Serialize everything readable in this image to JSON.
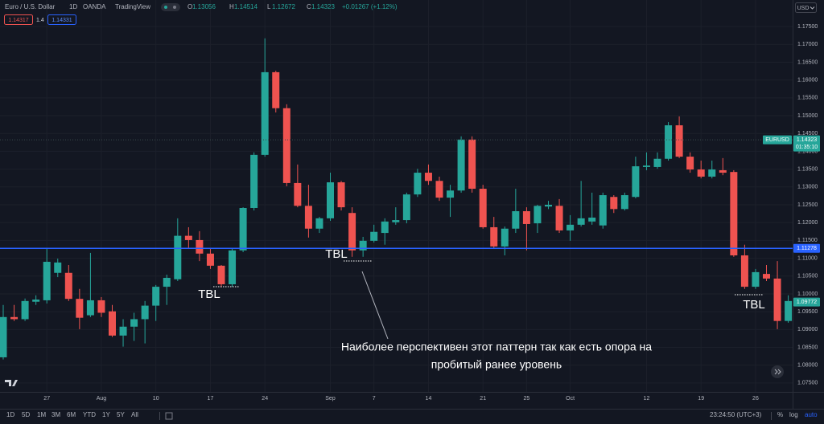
{
  "chart_data": {
    "type": "candlestick",
    "title": "Euro / U.S. Dollar",
    "interval": "1D",
    "exchange": "OANDA",
    "source": "TradingView",
    "legend": [
      {
        "key": "O",
        "value": 1.13056
      },
      {
        "key": "H",
        "value": 1.14514
      },
      {
        "key": "L",
        "value": 1.12672
      },
      {
        "key": "C",
        "value": 1.14323
      }
    ],
    "change": "+0.01267 (+1.12%)",
    "currency": "USD",
    "categories": [
      null,
      null,
      null,
      null,
      "27",
      null,
      null,
      null,
      null,
      "Aug",
      null,
      null,
      null,
      null,
      "10",
      null,
      null,
      null,
      null,
      "17",
      null,
      null,
      null,
      null,
      "24",
      null,
      null,
      null,
      null,
      null,
      "Sep",
      null,
      null,
      null,
      "7",
      null,
      null,
      null,
      null,
      "14",
      null,
      null,
      null,
      null,
      "21",
      null,
      null,
      null,
      "25",
      null,
      null,
      null,
      "Oct",
      null,
      null,
      null,
      null,
      null,
      null,
      "12",
      null,
      null,
      null,
      null,
      "19",
      null,
      null,
      null,
      null,
      "26",
      null,
      null,
      null
    ],
    "open": [
      1.0822,
      1.0935,
      1.0929,
      1.0978,
      1.0982,
      1.1059,
      1.1059,
      1.0986,
      1.094,
      1.0982,
      1.0951,
      1.0883,
      1.0908,
      1.0929,
      1.0967,
      1.102,
      1.1041,
      1.1163,
      1.1151,
      1.1113,
      1.1079,
      1.1027,
      1.1122,
      1.1241,
      1.139,
      1.1622,
      1.1521,
      1.1311,
      1.1247,
      1.1183,
      1.1212,
      1.1313,
      1.1227,
      1.1122,
      1.1149,
      1.1171,
      1.1201,
      1.1207,
      1.1279,
      1.134,
      1.1317,
      1.127,
      1.129,
      1.1433,
      1.1295,
      1.1187,
      1.1133,
      1.1183,
      1.1232,
      1.1198,
      1.1245,
      1.1247,
      1.1178,
      1.1194,
      1.1203,
      1.1192,
      1.1272,
      1.1238,
      1.1272,
      1.1356,
      1.1356,
      1.1379,
      1.1473,
      1.1385,
      1.1349,
      1.1329,
      1.1347,
      1.1342,
      1.1108,
      1.102,
      1.1056,
      1.1043,
      1.0924
    ],
    "high": [
      1.0969,
      1.0969,
      1.0987,
      1.0996,
      1.1126,
      1.1099,
      1.1081,
      1.1014,
      1.1115,
      1.0991,
      1.0969,
      1.0929,
      1.0947,
      1.098,
      1.1025,
      1.1054,
      1.1212,
      1.1187,
      1.1176,
      1.1126,
      1.1081,
      1.1126,
      1.1243,
      1.1397,
      1.1717,
      1.1626,
      1.1532,
      1.1363,
      1.1306,
      1.1216,
      1.134,
      1.1317,
      1.1243,
      1.116,
      1.1194,
      1.1212,
      1.1243,
      1.1284,
      1.1351,
      1.1363,
      1.1329,
      1.1306,
      1.1442,
      1.1442,
      1.1306,
      1.1216,
      1.1189,
      1.1295,
      1.1243,
      1.125,
      1.1261,
      1.1266,
      1.1221,
      1.1317,
      1.1284,
      1.1284,
      1.1277,
      1.1284,
      1.1385,
      1.1397,
      1.1397,
      1.1482,
      1.1498,
      1.1397,
      1.1374,
      1.1374,
      1.1381,
      1.1347,
      1.1138,
      1.107,
      1.1081,
      1.1092,
      1.0996
    ],
    "low": [
      1.0816,
      1.0924,
      1.0924,
      1.0969,
      1.0973,
      1.1047,
      1.098,
      1.0901,
      1.0935,
      1.0935,
      1.0879,
      1.0852,
      1.0868,
      1.0861,
      1.0924,
      1.0969,
      1.1036,
      1.1126,
      1.1092,
      1.107,
      1.1018,
      1.102,
      1.1117,
      1.1234,
      1.1385,
      1.1509,
      1.1302,
      1.1243,
      1.1158,
      1.1171,
      1.1205,
      1.1234,
      1.1104,
      1.1104,
      1.1144,
      1.1138,
      1.1194,
      1.1198,
      1.1272,
      1.1306,
      1.1261,
      1.1216,
      1.1284,
      1.1284,
      1.1183,
      1.1126,
      1.1108,
      1.1171,
      1.1122,
      1.1171,
      1.1238,
      1.1171,
      1.1149,
      1.1189,
      1.1194,
      1.1183,
      1.1227,
      1.1234,
      1.1268,
      1.1347,
      1.1351,
      1.1374,
      1.1381,
      1.134,
      1.1324,
      1.1324,
      1.1333,
      1.1104,
      1.1014,
      1.1014,
      1.1036,
      1.0901,
      1.0919
    ],
    "close": [
      1.0935,
      1.0929,
      1.098,
      1.0984,
      1.109,
      1.1088,
      1.0986,
      1.0933,
      1.0982,
      1.0947,
      1.0883,
      1.0908,
      1.0929,
      1.0967,
      1.102,
      1.1045,
      1.1163,
      1.1151,
      1.1113,
      1.1079,
      1.1027,
      1.1122,
      1.1241,
      1.139,
      1.1622,
      1.1521,
      1.1311,
      1.1247,
      1.1183,
      1.1212,
      1.1313,
      1.1243,
      1.1122,
      1.1149,
      1.1174,
      1.1203,
      1.1207,
      1.1279,
      1.134,
      1.1317,
      1.127,
      1.129,
      1.1433,
      1.1295,
      1.1187,
      1.1133,
      1.1183,
      1.1232,
      1.1196,
      1.1247,
      1.125,
      1.1178,
      1.1194,
      1.1212,
      1.1214,
      1.1277,
      1.1238,
      1.1277,
      1.1358,
      1.136,
      1.1379,
      1.1473,
      1.1385,
      1.1349,
      1.1329,
      1.1349,
      1.134,
      1.1108,
      1.102,
      1.1061,
      1.1043,
      1.0924,
      1.098
    ],
    "up_color": "#26a69a",
    "down_color": "#ef5350",
    "ylim": [
      1.0725,
      1.1775
    ],
    "yticks": [
      {
        "value": 1.075,
        "label": "1.07500"
      },
      {
        "value": 1.08,
        "label": "1.08000"
      },
      {
        "value": 1.085,
        "label": "1.08500"
      },
      {
        "value": 1.09,
        "label": "1.09000"
      },
      {
        "value": 1.095,
        "label": "1.09500"
      },
      {
        "value": 1.1,
        "label": "1.10000"
      },
      {
        "value": 1.105,
        "label": "1.10500"
      },
      {
        "value": 1.11,
        "label": "1.11000"
      },
      {
        "value": 1.115,
        "label": "1.11500"
      },
      {
        "value": 1.12,
        "label": "1.12000"
      },
      {
        "value": 1.125,
        "label": "1.12500"
      },
      {
        "value": 1.13,
        "label": "1.13000"
      },
      {
        "value": 1.135,
        "label": "1.13500"
      },
      {
        "value": 1.14,
        "label": "1.14000"
      },
      {
        "value": 1.145,
        "label": "1.14500"
      },
      {
        "value": 1.15,
        "label": "1.15000"
      },
      {
        "value": 1.155,
        "label": "1.15500"
      },
      {
        "value": 1.16,
        "label": "1.16000"
      },
      {
        "value": 1.165,
        "label": "1.16500"
      },
      {
        "value": 1.17,
        "label": "1.17000"
      },
      {
        "value": 1.175,
        "label": "1.17500"
      }
    ],
    "grid": true,
    "price_lines": [
      {
        "value": 1.11278,
        "color": "#2962ff",
        "style": "solid"
      },
      {
        "name": "EURUSD",
        "value": 1.14323,
        "countdown": "01:35:10",
        "color": "#26a69a",
        "style": "dotted"
      }
    ],
    "price_tags": [
      {
        "value": 1.09772,
        "color": "#26a69a"
      }
    ],
    "annotations": {
      "labels": [
        "TBL",
        "TBL",
        "TBL"
      ],
      "caption": [
        "Наиболее перспективен этот паттерн так как есть опора на",
        "пробитый ранее уровень"
      ]
    }
  },
  "toolbar": {
    "bid": "1.14317",
    "spread": "1.4",
    "ask": "1.14331"
  },
  "bottom_bar": {
    "ranges": [
      "1D",
      "5D",
      "1M",
      "3M",
      "6M",
      "YTD",
      "1Y",
      "5Y",
      "All"
    ],
    "clock": "23:24:50 (UTC+3)",
    "scale_options": [
      "%",
      "log",
      "auto"
    ]
  }
}
